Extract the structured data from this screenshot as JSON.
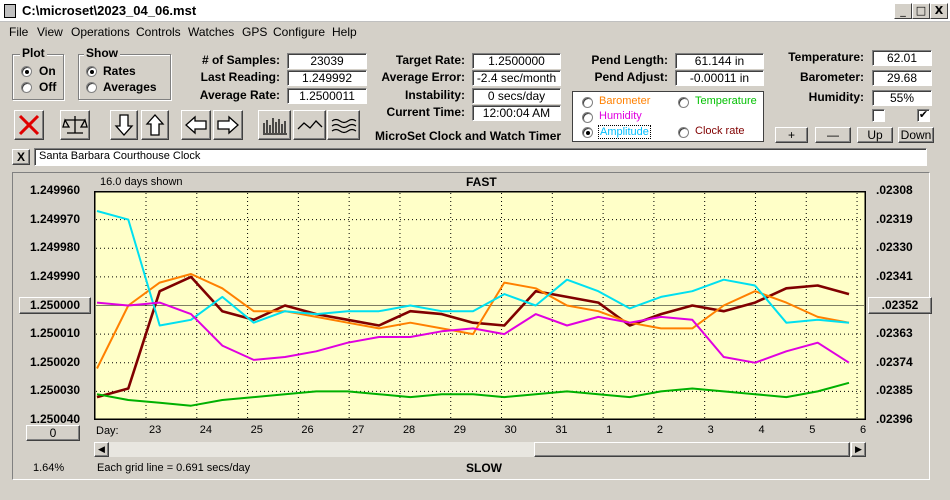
{
  "window": {
    "title": "C:\\microset\\2023_04_06.mst",
    "min": "_",
    "max": "□",
    "close": "X"
  },
  "menu": [
    "File",
    "View",
    "Operations",
    "Controls",
    "Watches",
    "GPS",
    "Configure",
    "Help"
  ],
  "plot_group": {
    "label": "Plot",
    "on": "On",
    "off": "Off",
    "selected": "On"
  },
  "show_group": {
    "label": "Show",
    "rates": "Rates",
    "averages": "Averages",
    "selected": "Rates"
  },
  "stats": {
    "samples_label": "# of Samples:",
    "samples": "23039",
    "last_label": "Last Reading:",
    "last": "1.249992",
    "avg_label": "Average Rate:",
    "avg": "1.2500011",
    "target_label": "Target Rate:",
    "target": "1.2500000",
    "err_label": "Average Error:",
    "err": "-2.4 sec/month",
    "instab_label": "Instability:",
    "instab": "0 secs/day",
    "time_label": "Current Time:",
    "time": "12:00:04 AM",
    "pendlen_label": "Pend Length:",
    "pendlen": "61.144 in",
    "pendadj_label": "Pend Adjust:",
    "pendadj": "-0.00011 in",
    "temp_label": "Temperature:",
    "temp": "62.01",
    "baro_label": "Barometer:",
    "baro": "29.68",
    "hum_label": "Humidity:",
    "hum": "55%"
  },
  "app_title": "MicroSet Clock and Watch Timer",
  "series_select": {
    "barometer": "Barometer",
    "temperature": "Temperature",
    "humidity": "Humidity",
    "amplitude": "Amplitude",
    "clockrate": "Clock rate",
    "selected": "Amplitude",
    "colors": {
      "barometer": "#ff8000",
      "temperature": "#00c000",
      "humidity": "#e000e0",
      "amplitude": "#00c0ff",
      "clockrate": "#800000"
    }
  },
  "adjust_buttons": {
    "plus": "+",
    "minus": "—",
    "up": "Up",
    "down": "Down"
  },
  "checkboxes": [
    false,
    true
  ],
  "clock_name": "Santa Barbara Courthouse Clock",
  "clear_btn": "X",
  "chart_data": {
    "type": "line",
    "top_label": "FAST",
    "bottom_label": "SLOW",
    "days_shown": "16.0 days shown",
    "grid_note": "Each grid line = 0.691 secs/day",
    "left_ticks": [
      "1.249960",
      "1.249970",
      "1.249980",
      "1.249990",
      "1.250000",
      "1.250010",
      "1.250020",
      "1.250030",
      "1.250040"
    ],
    "left_center_btn": "1.250000",
    "right_ticks": [
      ".02308",
      ".02319",
      ".02330",
      ".02341",
      ".02352",
      ".02363",
      ".02374",
      ".02385",
      ".02396"
    ],
    "right_center_btn": ".02352",
    "x_prefix": "Day:",
    "x_ticks": [
      "23",
      "24",
      "25",
      "26",
      "27",
      "28",
      "29",
      "30",
      "31",
      "1",
      "2",
      "3",
      "4",
      "5",
      "6"
    ],
    "zero_btn": "0",
    "percent": "1.64%",
    "ylim": [
      1.24996,
      1.25004
    ],
    "series": [
      {
        "name": "Clock rate",
        "color": "#800000",
        "values": [
          1.250032,
          1.250029,
          1.249995,
          1.24999,
          1.250002,
          1.250005,
          1.25,
          1.250003,
          1.250005,
          1.250007,
          1.250002,
          1.250003,
          1.250006,
          1.250007,
          1.249995,
          1.249997,
          1.249999,
          1.250007,
          1.250003,
          1.25,
          1.250002,
          1.249999,
          1.249994,
          1.249993,
          1.249996
        ]
      },
      {
        "name": "Barometer",
        "color": "#ff8000",
        "values": [
          1.250022,
          1.25,
          1.249992,
          1.249989,
          1.249994,
          1.250002,
          1.250002,
          1.250004,
          1.250006,
          1.250008,
          1.250006,
          1.250008,
          1.25001,
          1.249992,
          1.249994,
          1.25,
          1.250002,
          1.250006,
          1.250008,
          1.250008,
          1.25,
          1.249995,
          1.249999,
          1.250004,
          1.250006
        ]
      },
      {
        "name": "Amplitude",
        "color": "#00e0f0",
        "values": [
          1.249967,
          1.24997,
          1.250007,
          1.250005,
          1.249997,
          1.250006,
          1.250002,
          1.250003,
          1.250002,
          1.250002,
          1.25,
          1.250002,
          1.250002,
          1.249996,
          1.25,
          1.249991,
          1.249995,
          1.250001,
          1.249997,
          1.249995,
          1.249991,
          1.249993,
          1.250006,
          1.250005,
          1.250006
        ]
      },
      {
        "name": "Humidity",
        "color": "#e000e0",
        "values": [
          1.249999,
          1.25,
          1.249999,
          1.250003,
          1.250014,
          1.250019,
          1.250018,
          1.250016,
          1.250013,
          1.250011,
          1.250011,
          1.250009,
          1.250008,
          1.25001,
          1.250003,
          1.250007,
          1.250004,
          1.250006,
          1.250004,
          1.250005,
          1.250018,
          1.25002,
          1.250016,
          1.250013,
          1.25002
        ]
      },
      {
        "name": "Temperature",
        "color": "#00b000",
        "values": [
          1.250031,
          1.250033,
          1.250034,
          1.250035,
          1.250033,
          1.250032,
          1.250031,
          1.25003,
          1.25003,
          1.250031,
          1.250032,
          1.250031,
          1.250031,
          1.250032,
          1.250031,
          1.25003,
          1.250031,
          1.250032,
          1.25003,
          1.250029,
          1.25003,
          1.250031,
          1.250032,
          1.25003,
          1.250027
        ]
      }
    ]
  }
}
